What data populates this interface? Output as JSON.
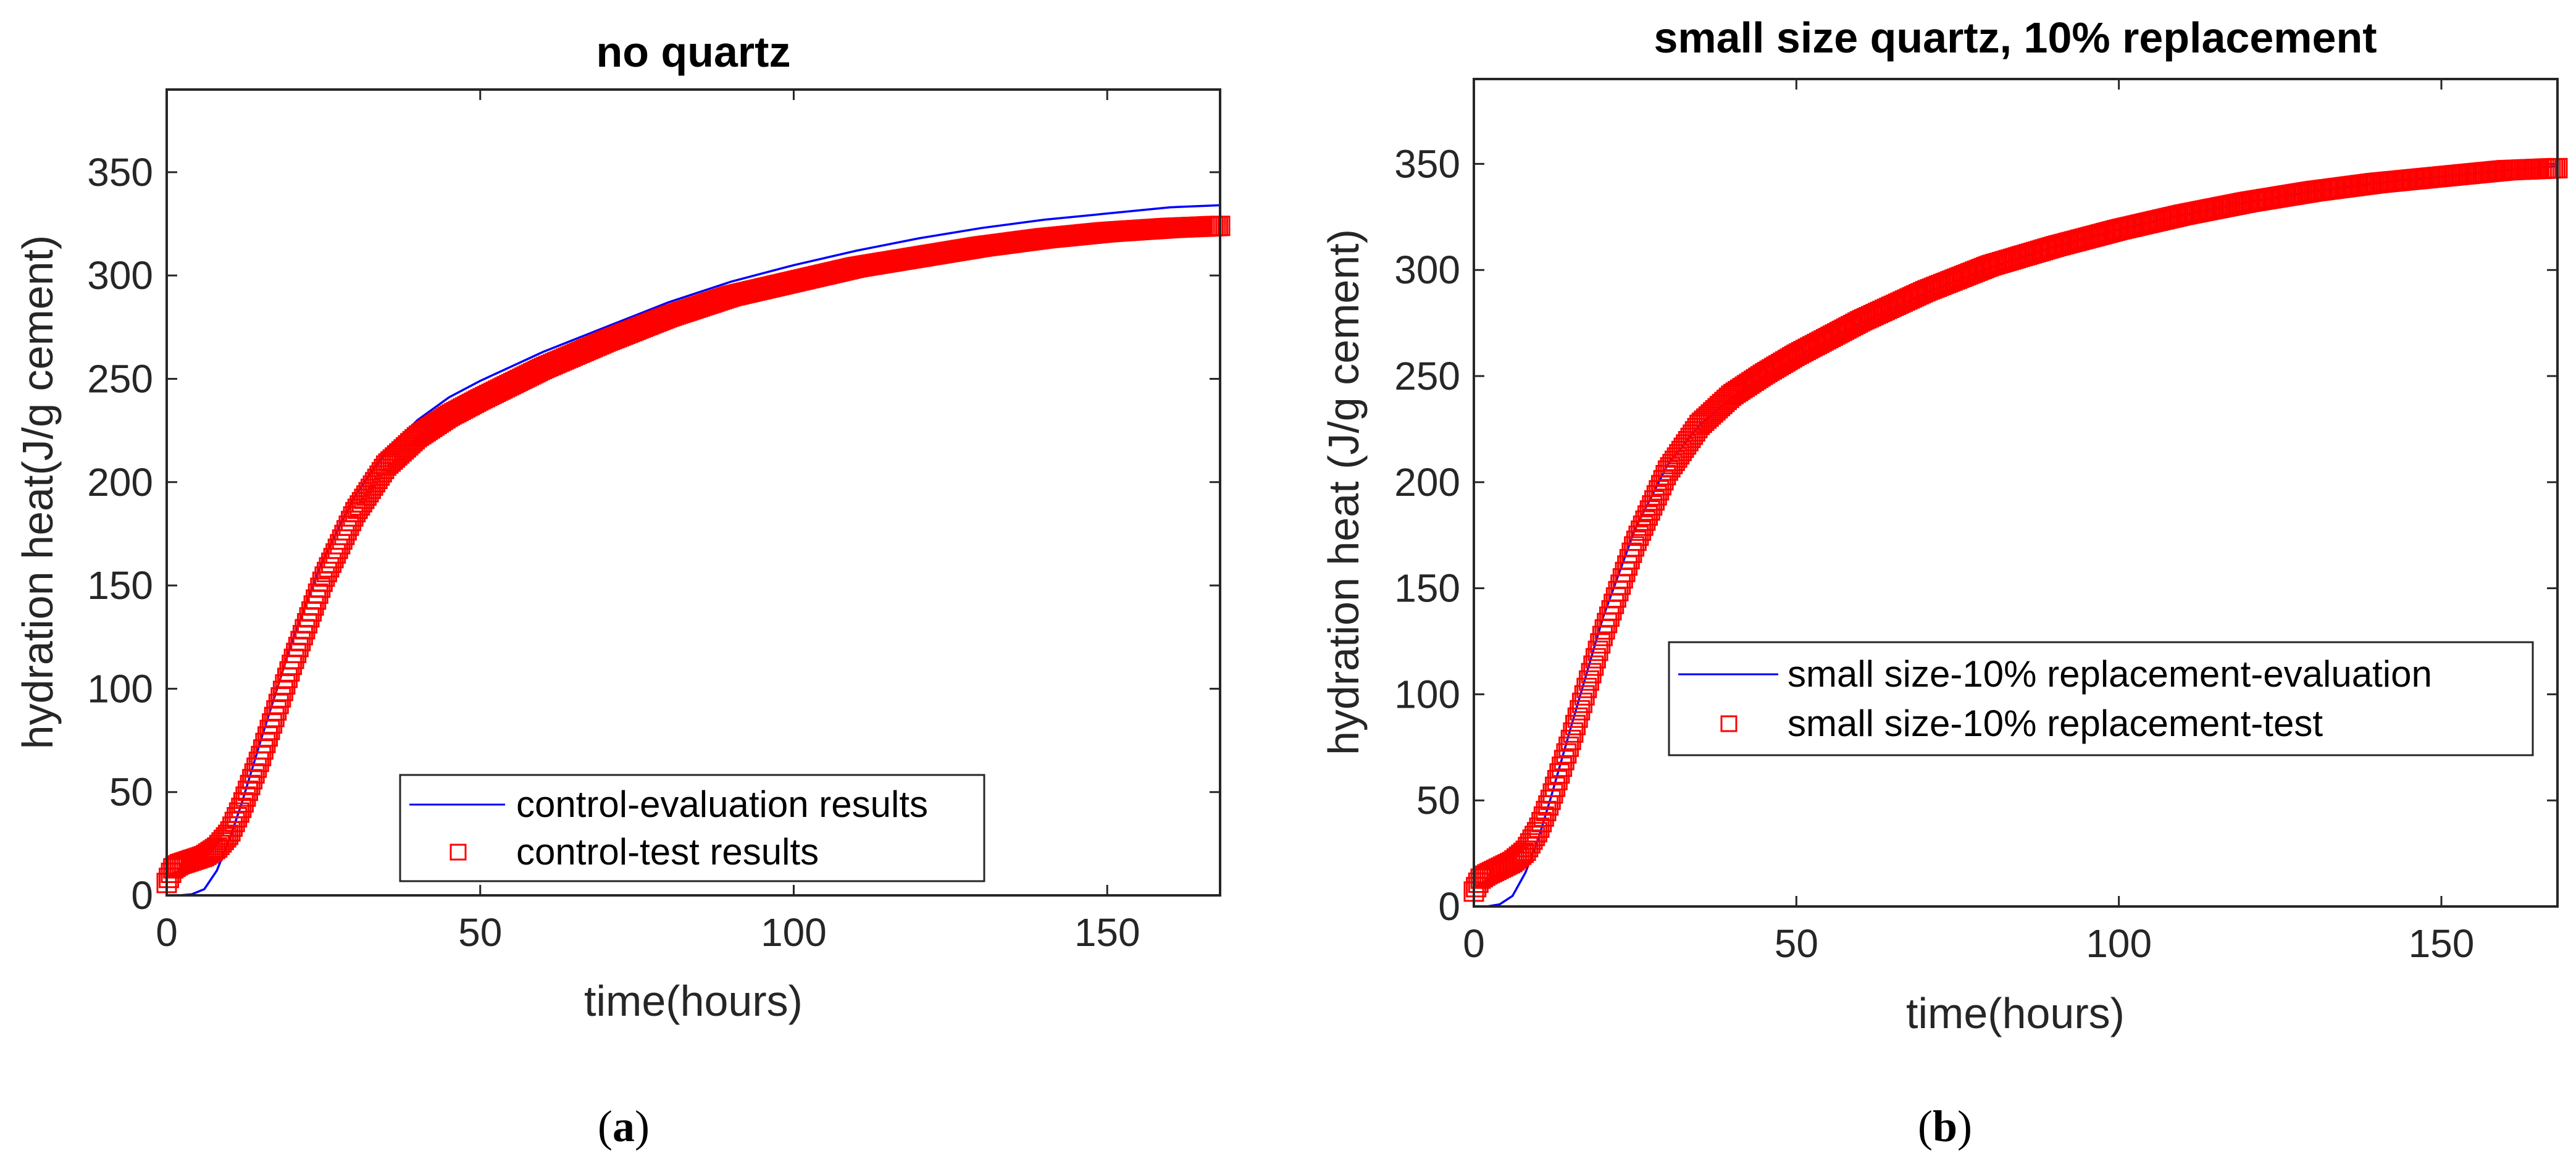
{
  "chart_data": [
    {
      "type": "line",
      "title": "no quartz",
      "xlabel": "time(hours)",
      "ylabel": "hydration heat(J/g cement)",
      "xlim": [
        0,
        168
      ],
      "ylim": [
        0,
        390
      ],
      "xticks": [
        0,
        50,
        100,
        150
      ],
      "yticks": [
        0,
        50,
        100,
        150,
        200,
        250,
        300,
        350
      ],
      "legend_position": "bottom-right",
      "caption": {
        "open": "(",
        "letter": "a",
        "close": ")"
      },
      "series": [
        {
          "name": "control-evaluation results",
          "style": "line",
          "color": "#0000ff",
          "x": [
            0,
            2,
            4,
            6,
            8,
            10,
            12,
            15,
            20,
            25,
            30,
            35,
            40,
            45,
            50,
            60,
            70,
            80,
            90,
            100,
            110,
            120,
            130,
            140,
            150,
            160,
            168
          ],
          "y": [
            0,
            0,
            0.5,
            3,
            12,
            27,
            45,
            75,
            123,
            163,
            193,
            215,
            230,
            241,
            249,
            263,
            275,
            287,
            297,
            305,
            312,
            318,
            323,
            327,
            330,
            333,
            334
          ]
        },
        {
          "name": "control-test results",
          "style": "square-markers",
          "color": "#ff0000",
          "x": [
            0,
            1,
            2,
            4,
            6,
            8,
            10,
            12,
            15,
            20,
            25,
            30,
            35,
            40,
            45,
            50,
            60,
            70,
            80,
            90,
            100,
            110,
            120,
            130,
            140,
            150,
            160,
            168
          ],
          "y": [
            6,
            13,
            15,
            17,
            19,
            23,
            30,
            43,
            67,
            112,
            153,
            185,
            208,
            222,
            232,
            240,
            255,
            268,
            280,
            290,
            297,
            304,
            309,
            314,
            318,
            321,
            323,
            324
          ]
        }
      ]
    },
    {
      "type": "line",
      "title": "small size quartz, 10% replacement",
      "xlabel": "time(hours)",
      "ylabel": "hydration heat (J/g cement)",
      "xlim": [
        0,
        168
      ],
      "ylim": [
        0,
        390
      ],
      "xticks": [
        0,
        50,
        100,
        150
      ],
      "yticks": [
        0,
        50,
        100,
        150,
        200,
        250,
        300,
        350
      ],
      "legend_position": "center-right",
      "caption": {
        "open": "(",
        "letter": "b",
        "close": ")"
      },
      "series": [
        {
          "name": "small size-10% replacement-evaluation",
          "style": "line",
          "color": "#0000ff",
          "x": [
            0,
            2,
            4,
            6,
            8,
            10,
            12,
            15,
            20,
            25,
            30,
            35,
            40,
            45,
            50,
            60,
            70,
            80,
            90,
            100,
            110,
            120,
            130,
            140,
            150,
            160,
            168
          ],
          "y": [
            0,
            0,
            1,
            5,
            16,
            32,
            52,
            84,
            136,
            178,
            208,
            227,
            240,
            250,
            259,
            275,
            289,
            301,
            311,
            319,
            326,
            332,
            337,
            341,
            344,
            347,
            349
          ]
        },
        {
          "name": "small size-10% replacement-test",
          "style": "square-markers",
          "color": "#ff0000",
          "x": [
            0,
            1,
            2,
            4,
            6,
            8,
            10,
            12,
            15,
            20,
            25,
            30,
            35,
            40,
            45,
            50,
            60,
            70,
            80,
            90,
            100,
            110,
            120,
            130,
            140,
            150,
            160,
            168
          ],
          "y": [
            7,
            13,
            15,
            18,
            21,
            26,
            36,
            51,
            78,
            128,
            171,
            205,
            227,
            241,
            251,
            260,
            276,
            290,
            302,
            311,
            319,
            326,
            332,
            337,
            341,
            344,
            347,
            348
          ]
        }
      ]
    }
  ]
}
